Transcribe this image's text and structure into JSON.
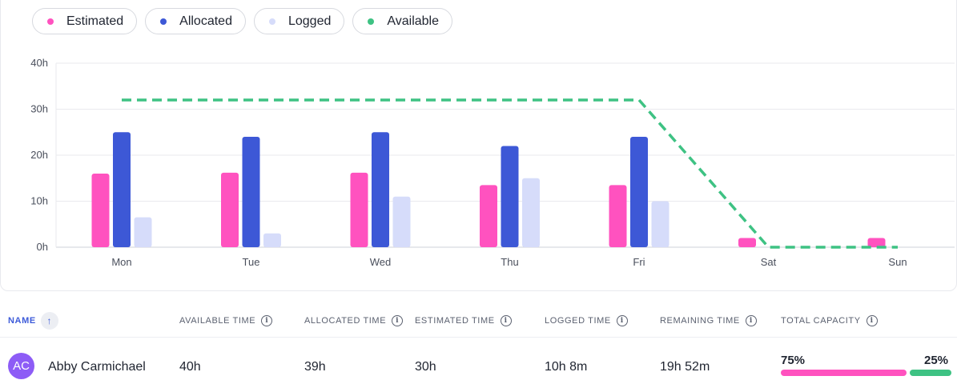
{
  "legend": [
    {
      "label": "Estimated",
      "color": "#ff52bf"
    },
    {
      "label": "Allocated",
      "color": "#3d58d6"
    },
    {
      "label": "Logged",
      "color": "#d6dcfa"
    },
    {
      "label": "Available",
      "color": "#3ec283"
    }
  ],
  "chart_data": {
    "type": "bar",
    "categories": [
      "Mon",
      "Tue",
      "Wed",
      "Thu",
      "Fri",
      "Sat",
      "Sun"
    ],
    "y_ticks": [
      "0h",
      "10h",
      "20h",
      "30h",
      "40h"
    ],
    "ylim": [
      0,
      40
    ],
    "grid": true,
    "series": [
      {
        "name": "Estimated",
        "type": "bar",
        "color": "#ff52bf",
        "values": [
          16,
          16.2,
          16.2,
          13.5,
          13.5,
          2,
          2
        ]
      },
      {
        "name": "Allocated",
        "type": "bar",
        "color": "#3d58d6",
        "values": [
          25,
          24,
          25,
          22,
          24,
          0,
          0
        ]
      },
      {
        "name": "Logged",
        "type": "bar",
        "color": "#d6dcfa",
        "values": [
          6.5,
          3,
          11,
          15,
          10,
          0,
          0
        ]
      },
      {
        "name": "Available",
        "type": "line",
        "style": "dashed",
        "color": "#3ec283",
        "values": [
          32,
          32,
          32,
          32,
          32,
          0,
          0
        ]
      }
    ]
  },
  "table": {
    "headers": {
      "name": "NAME",
      "available": "AVAILABLE TIME",
      "allocated": "ALLOCATED TIME",
      "estimated": "ESTIMATED TIME",
      "logged": "LOGGED TIME",
      "remaining": "REMAINING TIME",
      "capacity": "TOTAL CAPACITY"
    },
    "info_glyph": "i",
    "sort_glyph": "↑",
    "row": {
      "initials": "AC",
      "name": "Abby Carmichael",
      "available": "40h",
      "allocated": "39h",
      "estimated": "30h",
      "logged": "10h 8m",
      "remaining": "19h 52m",
      "capacity_used_label": "75%",
      "capacity_free_label": "25%",
      "capacity_used": 0.75,
      "capacity_free": 0.25,
      "capacity_used_color": "#ff52bf",
      "capacity_free_color": "#3ec283"
    }
  }
}
